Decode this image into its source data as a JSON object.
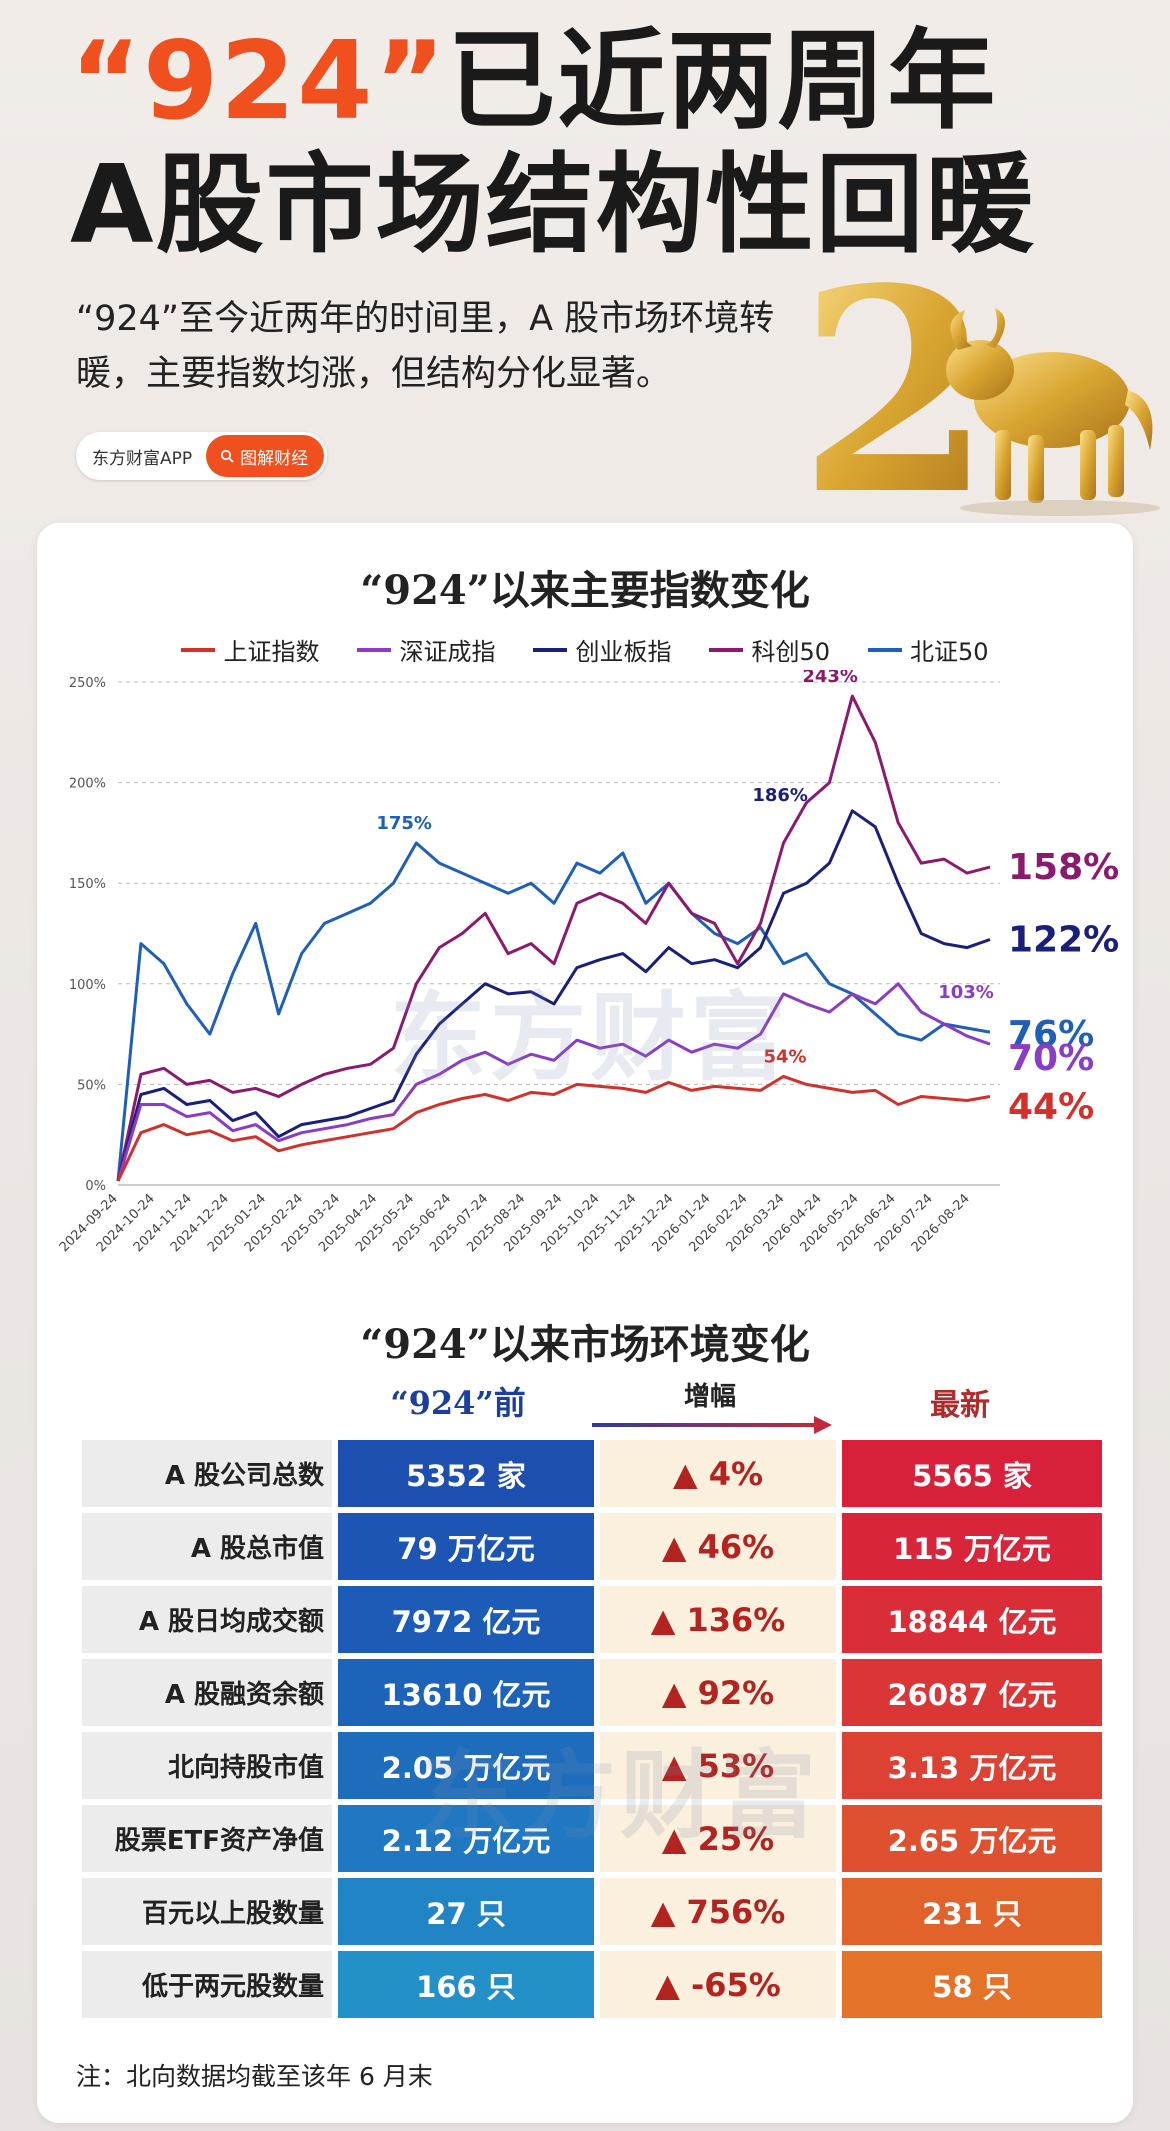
{
  "header": {
    "title_quote": "“924”",
    "title_rest": "已近两周年",
    "title_line2": "A股市场结构性回暖",
    "intro": "“924”至今近两年的时间里，A 股市场环境转暖，主要指数均涨，但结构分化显著。",
    "source": "东方财富APP",
    "tag": "图解财经",
    "deco_number": "2"
  },
  "watermark": "东方财富",
  "chart_data": {
    "type": "line",
    "title": "“924”以来主要指数变化",
    "x_ticks": [
      "2024-09-24",
      "2024-10-24",
      "2024-11-24",
      "2024-12-24",
      "2025-01-24",
      "2025-02-24",
      "2025-03-24",
      "2025-04-24",
      "2025-05-24",
      "2025-06-24",
      "2025-07-24",
      "2025-08-24",
      "2025-09-24",
      "2025-10-24",
      "2025-11-24",
      "2025-12-24",
      "2026-01-24",
      "2026-02-24",
      "2026-03-24",
      "2026-04-24",
      "2026-05-24",
      "2026-06-24",
      "2026-07-24",
      "2026-08-24"
    ],
    "y_ticks": [
      "0%",
      "50%",
      "100%",
      "150%",
      "200%",
      "250%"
    ],
    "ylim": [
      0,
      250
    ],
    "grid": true,
    "legend_position": "top",
    "series": [
      {
        "name": "上证指数",
        "color": "#d1302b",
        "final_label": "44%",
        "peak_label": "54%",
        "values": [
          2,
          26,
          30,
          25,
          27,
          22,
          24,
          17,
          20,
          22,
          24,
          26,
          28,
          36,
          40,
          43,
          45,
          42,
          46,
          45,
          50,
          49,
          48,
          46,
          51,
          47,
          49,
          48,
          47,
          54,
          50,
          48,
          46,
          47,
          40,
          44,
          43,
          42,
          44
        ]
      },
      {
        "name": "深证成指",
        "color": "#8a3cc4",
        "final_label": "70%",
        "peak_label": "103%",
        "values": [
          2,
          40,
          40,
          34,
          36,
          27,
          30,
          22,
          26,
          28,
          30,
          33,
          35,
          50,
          55,
          62,
          66,
          60,
          65,
          62,
          72,
          68,
          70,
          64,
          72,
          66,
          70,
          68,
          75,
          95,
          90,
          86,
          95,
          90,
          100,
          86,
          80,
          74,
          70
        ]
      },
      {
        "name": "创业板指",
        "color": "#1a1f7a",
        "final_label": "122%",
        "peak_label": "186%",
        "values": [
          2,
          45,
          48,
          40,
          42,
          32,
          36,
          24,
          30,
          32,
          34,
          38,
          42,
          65,
          80,
          90,
          100,
          95,
          96,
          90,
          108,
          112,
          115,
          106,
          118,
          110,
          112,
          108,
          118,
          145,
          150,
          160,
          186,
          178,
          150,
          125,
          120,
          118,
          122
        ]
      },
      {
        "name": "科创50",
        "color": "#8b1a6e",
        "final_label": "158%",
        "peak_label": "243%",
        "values": [
          2,
          55,
          58,
          50,
          52,
          46,
          48,
          44,
          50,
          55,
          58,
          60,
          68,
          100,
          118,
          125,
          135,
          115,
          120,
          110,
          140,
          145,
          140,
          130,
          150,
          135,
          130,
          110,
          130,
          170,
          190,
          200,
          243,
          220,
          180,
          160,
          162,
          155,
          158
        ]
      },
      {
        "name": "北证50",
        "color": "#1f5fb8",
        "final_label": "76%",
        "peak_label": "175%",
        "values": [
          2,
          120,
          110,
          90,
          75,
          105,
          130,
          85,
          115,
          130,
          135,
          140,
          150,
          170,
          160,
          155,
          150,
          145,
          150,
          140,
          160,
          155,
          165,
          140,
          150,
          135,
          125,
          120,
          128,
          110,
          115,
          100,
          95,
          85,
          75,
          72,
          80,
          78,
          76
        ]
      }
    ]
  },
  "table": {
    "title": "“924”以来市场环境变化",
    "col_before": "“924”前",
    "col_growth": "增幅",
    "col_latest": "最新",
    "rows": [
      {
        "label": "A 股公司总数",
        "before": "5352 家",
        "growth": "▲ 4%",
        "latest": "5565 家"
      },
      {
        "label": "A 股总市值",
        "before": "79 万亿元",
        "growth": "▲ 46%",
        "latest": "115 万亿元"
      },
      {
        "label": "A 股日均成交额",
        "before": "7972 亿元",
        "growth": "▲ 136%",
        "latest": "18844 亿元"
      },
      {
        "label": "A 股融资余额",
        "before": "13610 亿元",
        "growth": "▲ 92%",
        "latest": "26087 亿元"
      },
      {
        "label": "北向持股市值",
        "before": "2.05 万亿元",
        "growth": "▲ 53%",
        "latest": "3.13 万亿元"
      },
      {
        "label": "股票ETF资产净值",
        "before": "2.12 万亿元",
        "growth": "▲ 25%",
        "latest": "2.65 万亿元"
      },
      {
        "label": "百元以上股数量",
        "before": "27 只",
        "growth": "▲ 756%",
        "latest": "231 只"
      },
      {
        "label": "低于两元股数量",
        "before": "166 只",
        "growth": "▲ -65%",
        "latest": "58 只"
      }
    ],
    "before_colors": [
      "#1c4fb0",
      "#1c55b3",
      "#1c5bb6",
      "#1d63b9",
      "#1e6dbd",
      "#1f78c1",
      "#2184c4",
      "#2390c8"
    ],
    "latest_colors": [
      "#d8203a",
      "#d8253a",
      "#d92d38",
      "#da3636",
      "#dc4133",
      "#df5030",
      "#e2622c",
      "#e57229"
    ]
  },
  "note": "注：北向数据均截至该年 6 月末"
}
